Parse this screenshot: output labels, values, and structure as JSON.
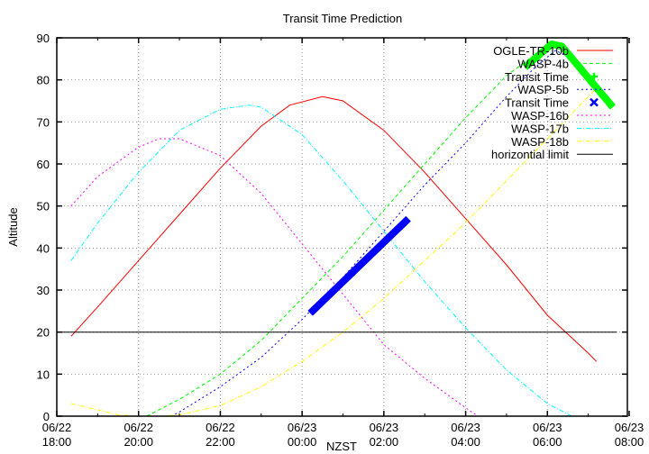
{
  "chart_data": {
    "type": "line",
    "title": "Transit Time Prediction",
    "xlabel": "NZST",
    "ylabel": "Altitude",
    "ylim": [
      0,
      90
    ],
    "xlim_hours_since_0622_1800": [
      0,
      14
    ],
    "grid": true,
    "legend_position": "top-right inside",
    "y_ticks": [
      0,
      10,
      20,
      30,
      40,
      50,
      60,
      70,
      80,
      90
    ],
    "x_ticks": [
      {
        "h": 0,
        "date": "06/22",
        "time": "18:00"
      },
      {
        "h": 2,
        "date": "06/22",
        "time": "20:00"
      },
      {
        "h": 4,
        "date": "06/22",
        "time": "22:00"
      },
      {
        "h": 6,
        "date": "06/23",
        "time": "00:00"
      },
      {
        "h": 8,
        "date": "06/23",
        "time": "02:00"
      },
      {
        "h": 10,
        "date": "06/23",
        "time": "04:00"
      },
      {
        "h": 12,
        "date": "06/23",
        "time": "06:00"
      },
      {
        "h": 14,
        "date": "06/23",
        "time": "08:00"
      }
    ],
    "series": [
      {
        "name": "OGLE-TR-10b",
        "color": "#ff0000",
        "style": "solid",
        "width": 1,
        "x": [
          0.35,
          1,
          2,
          3,
          4,
          5,
          5.7,
          6.5,
          7,
          8,
          9,
          10,
          11,
          12,
          13,
          13.2
        ],
        "y": [
          19,
          26,
          37,
          48,
          59,
          69,
          74,
          76,
          75,
          68,
          58,
          47,
          36,
          24,
          15,
          13
        ]
      },
      {
        "name": "WASP-4b",
        "color": "#00ff00",
        "style": "dashed",
        "width": 1,
        "x": [
          2.2,
          3,
          4,
          5,
          6,
          7,
          8,
          9,
          10,
          11,
          11.7,
          12.2,
          12.8,
          13.2
        ],
        "y": [
          0,
          4,
          10,
          18,
          28,
          38,
          49,
          60,
          71,
          81,
          86,
          88.5,
          84,
          79
        ]
      },
      {
        "name": "WASP-5b",
        "color": "#0000ff",
        "style": "dotted",
        "width": 1,
        "x": [
          2.8,
          3,
          4,
          5,
          6,
          7,
          8,
          9,
          10,
          11,
          11.7,
          12.2,
          12.8,
          13.2
        ],
        "y": [
          0,
          1,
          7,
          14,
          23,
          33,
          44,
          55,
          65,
          76,
          83,
          87,
          84,
          79
        ]
      },
      {
        "name": "WASP-16b",
        "color": "#ff00ff",
        "style": "dotted",
        "width": 1,
        "x": [
          0.35,
          1,
          2,
          2.5,
          3,
          4,
          5,
          6,
          7,
          8,
          9,
          10,
          10.3
        ],
        "y": [
          50,
          57,
          64,
          66,
          66,
          62,
          53,
          41,
          29,
          17,
          9,
          2,
          0
        ]
      },
      {
        "name": "WASP-17b",
        "color": "#00ffff",
        "style": "dashdot",
        "width": 1,
        "x": [
          0.35,
          1,
          2,
          3,
          4,
          4.7,
          5,
          6,
          7,
          8,
          9,
          10,
          11,
          12,
          12.6
        ],
        "y": [
          37,
          46,
          58,
          68,
          73,
          74,
          73.5,
          67,
          56,
          44,
          32,
          21,
          11,
          3,
          0
        ]
      },
      {
        "name": "WASP-18b",
        "color": "#ffff00",
        "style": "dashdot",
        "width": 1,
        "x": [
          0.35,
          1,
          1.5,
          2,
          2.5,
          3,
          4,
          5,
          6,
          7,
          8,
          9,
          10,
          11,
          12,
          13,
          13.2
        ],
        "y": [
          3,
          1.5,
          0.3,
          0,
          0,
          0.3,
          2.5,
          7,
          13,
          20,
          28,
          37,
          46,
          56,
          66,
          76,
          78
        ]
      },
      {
        "name": "horizontial limit",
        "color": "#000000",
        "style": "solid",
        "width": 1,
        "x": [
          0,
          13.7
        ],
        "y": [
          20,
          20
        ]
      }
    ],
    "transits": [
      {
        "name": "Transit Time",
        "of": "WASP-4b",
        "color": "#00ff00",
        "marker": "+",
        "x": [
          11.45,
          12.1,
          12.35,
          13.6
        ],
        "y": [
          83,
          88.5,
          88,
          73.5
        ]
      },
      {
        "name": "Transit Time",
        "of": "WASP-5b",
        "color": "#0000ff",
        "marker": "x",
        "x": [
          6.2,
          8.6
        ],
        "y": [
          24.5,
          47
        ]
      }
    ],
    "legend": [
      {
        "label": "OGLE-TR-10b",
        "color": "#ff0000",
        "style": "solid"
      },
      {
        "label": "WASP-4b",
        "color": "#00ff00",
        "style": "dashed"
      },
      {
        "label": "Transit Time",
        "color": "#00ff00",
        "style": "plus"
      },
      {
        "label": "WASP-5b",
        "color": "#0000ff",
        "style": "dotted"
      },
      {
        "label": "Transit Time",
        "color": "#0000ff",
        "style": "cross"
      },
      {
        "label": "WASP-16b",
        "color": "#ff00ff",
        "style": "dotted"
      },
      {
        "label": "WASP-17b",
        "color": "#00ffff",
        "style": "dashdot"
      },
      {
        "label": "WASP-18b",
        "color": "#ffff00",
        "style": "dashdot"
      },
      {
        "label": "horizontial limit",
        "color": "#000000",
        "style": "solid"
      }
    ]
  }
}
